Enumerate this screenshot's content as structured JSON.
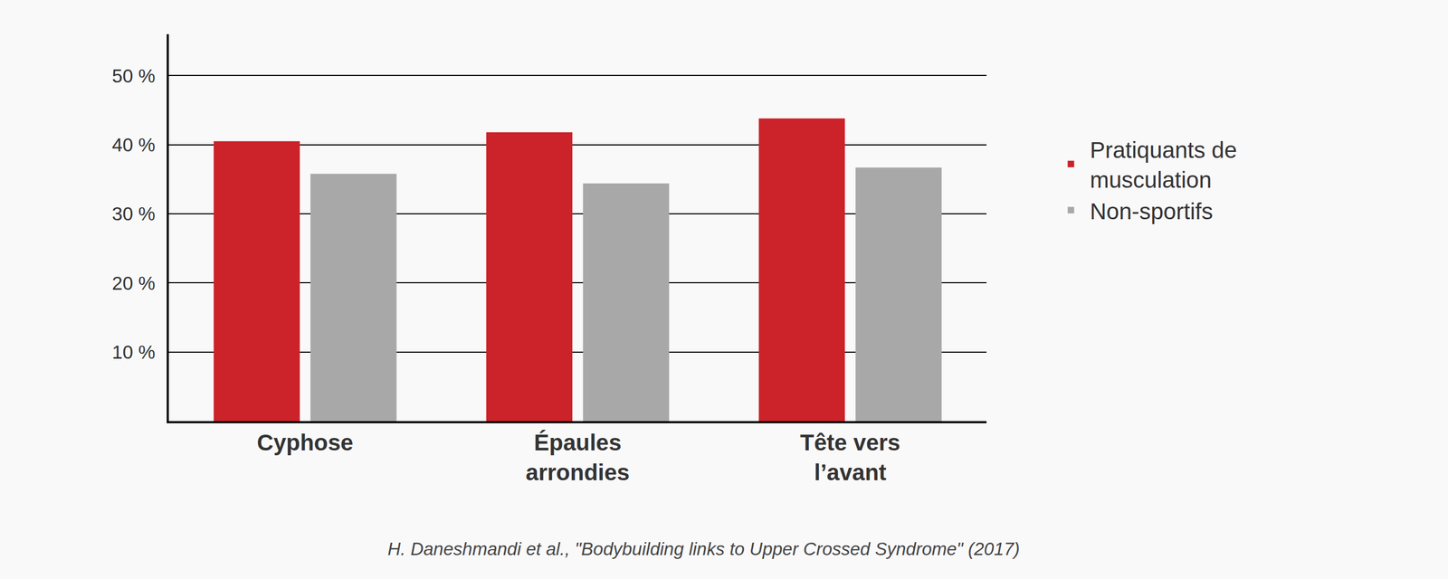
{
  "chart_data": {
    "type": "bar",
    "categories": [
      "Cyphose",
      "Épaules arrondies",
      "Tête vers l’avant"
    ],
    "series": [
      {
        "name": "Pratiquants de musculation",
        "color": "#cc2229",
        "values": [
          40.5,
          41.8,
          43.8
        ]
      },
      {
        "name": "Non-sportifs",
        "color": "#a8a8a8",
        "values": [
          35.8,
          34.4,
          36.7
        ]
      }
    ],
    "ylim": [
      0,
      56
    ],
    "yticks": [
      {
        "value": 10,
        "label": "10 %"
      },
      {
        "value": 20,
        "label": "20 %"
      },
      {
        "value": 30,
        "label": "30 %"
      },
      {
        "value": 40,
        "label": "40 %"
      },
      {
        "value": 50,
        "label": "50 %"
      }
    ],
    "grid": true,
    "legend": "right",
    "annotations": [
      "H. Daneshmandi et al., \"Bodybuilding links to Upper Crossed Syndrome\" (2017)"
    ]
  }
}
